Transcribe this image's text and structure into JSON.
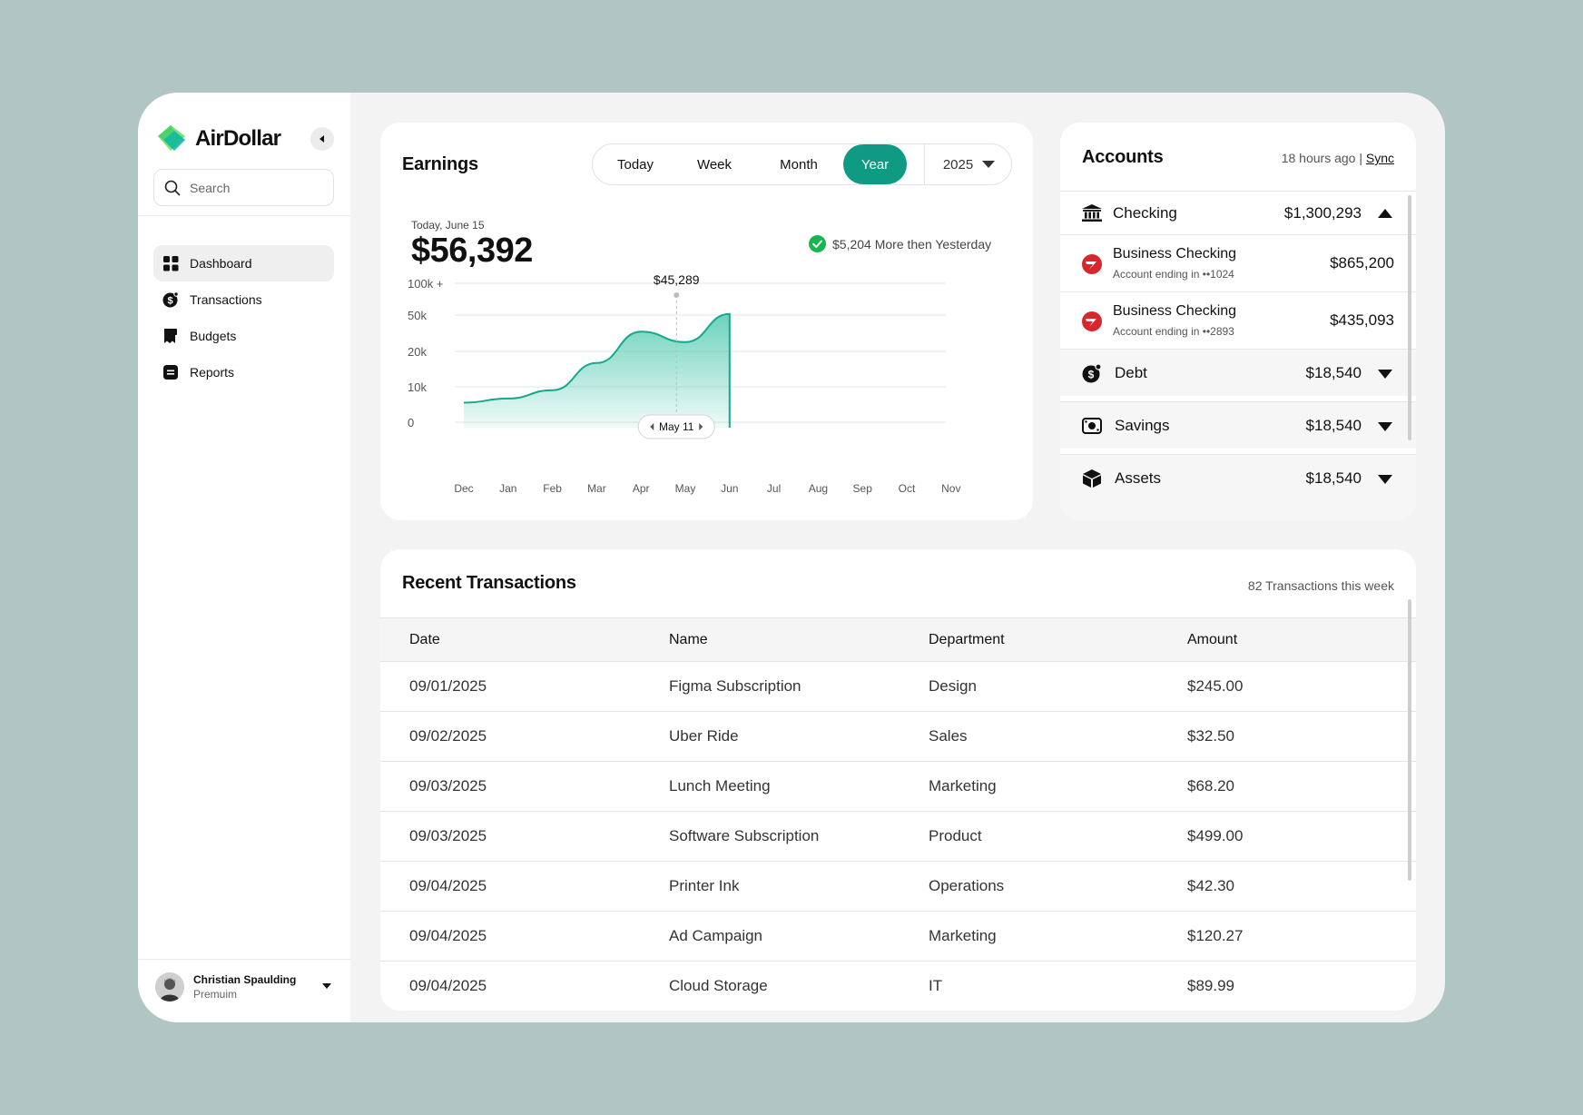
{
  "brand": {
    "name": "AirDollar"
  },
  "search": {
    "placeholder": "Search"
  },
  "nav": {
    "items": [
      {
        "label": "Dashboard",
        "icon": "grid-icon",
        "active": true
      },
      {
        "label": "Transactions",
        "icon": "dollar-coin-icon"
      },
      {
        "label": "Budgets",
        "icon": "receipt-icon"
      },
      {
        "label": "Reports",
        "icon": "document-icon"
      }
    ]
  },
  "user": {
    "name": "Christian Spaulding",
    "plan": "Premuim"
  },
  "earnings": {
    "title": "Earnings",
    "tabs": [
      "Today",
      "Week",
      "Month",
      "Year"
    ],
    "active_tab": "Year",
    "year": "2025",
    "date_label": "Today, June 15",
    "amount": "$56,392",
    "delta_text": "$5,204 More then Yesterday",
    "accent": "#0f9a83"
  },
  "chart_data": {
    "type": "area",
    "x": [
      "Dec",
      "Jan",
      "Feb",
      "Mar",
      "Apr",
      "May",
      "Jun",
      "Jul",
      "Aug",
      "Sep",
      "Oct",
      "Nov"
    ],
    "y_ticks": [
      "100k +",
      "50k",
      "20k",
      "10k",
      "0"
    ],
    "series": [
      {
        "values": [
          10,
          14,
          22,
          48,
          78,
          68,
          95,
          null,
          null,
          null,
          null,
          null
        ]
      }
    ],
    "highlight": {
      "label": "$45,289",
      "x_label": "May 11"
    },
    "grid": true
  },
  "accounts": {
    "title": "Accounts",
    "updated": "18 hours ago |",
    "sync_label": "Sync",
    "groups": [
      {
        "name": "Checking",
        "value": "$1,300,293",
        "icon": "bank-icon",
        "expanded": true,
        "children": [
          {
            "name": "Business Checking",
            "sub": "Account ending in ••1024",
            "value": "$865,200",
            "icon": "bank-logo-icon"
          },
          {
            "name": "Business Checking",
            "sub": "Account ending in ••2893",
            "value": "$435,093",
            "icon": "bank-logo-icon"
          }
        ]
      },
      {
        "name": "Debt",
        "value": "$18,540",
        "icon": "debt-icon",
        "expanded": false
      },
      {
        "name": "Savings",
        "value": "$18,540",
        "icon": "savings-icon",
        "expanded": false
      },
      {
        "name": "Assets",
        "value": "$18,540",
        "icon": "box-icon",
        "expanded": false
      }
    ]
  },
  "transactions": {
    "title": "Recent Transactions",
    "count_text": "82 Transactions this week",
    "columns": [
      "Date",
      "Name",
      "Department",
      "Amount"
    ],
    "rows": [
      [
        "09/01/2025",
        "Figma Subscription",
        "Design",
        "$245.00"
      ],
      [
        "09/02/2025",
        "Uber Ride",
        "Sales",
        "$32.50"
      ],
      [
        "09/03/2025",
        "Lunch Meeting",
        "Marketing",
        "$68.20"
      ],
      [
        "09/03/2025",
        "Software Subscription",
        "Product",
        "$499.00"
      ],
      [
        "09/04/2025",
        "Printer Ink",
        "Operations",
        "$42.30"
      ],
      [
        "09/04/2025",
        "Ad Campaign",
        "Marketing",
        "$120.27"
      ],
      [
        "09/04/2025",
        "Cloud Storage",
        "IT",
        "$89.99"
      ]
    ]
  }
}
